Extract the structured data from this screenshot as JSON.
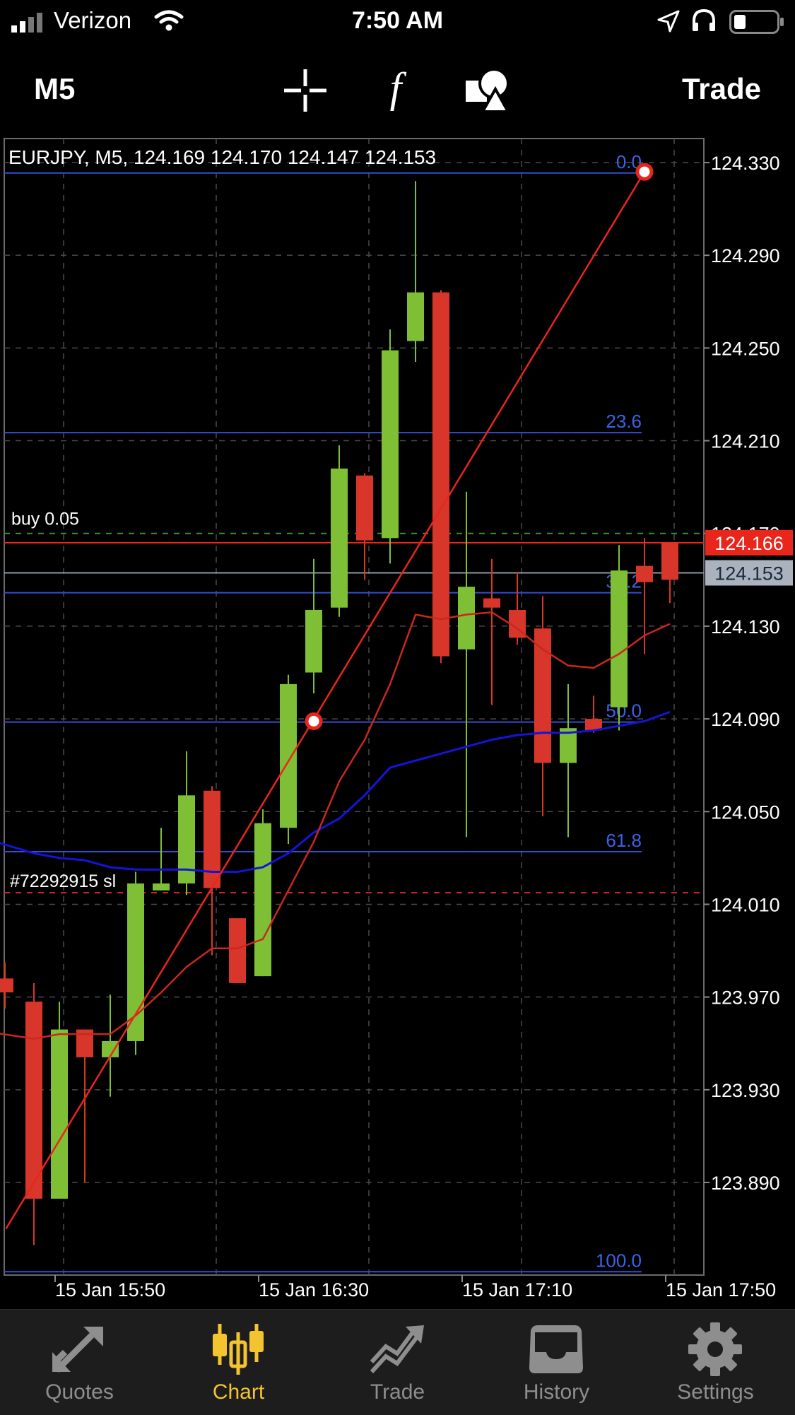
{
  "status_bar": {
    "carrier": "Verizon",
    "time": "7:50 AM"
  },
  "toolbar": {
    "period": "M5",
    "crosshair_icon": "crosshair-icon",
    "indicators_icon": "function-icon",
    "objects_icon": "shapes-icon",
    "trade_label": "Trade"
  },
  "chart": {
    "info": "EURJPY, M5, 124.169 124.170 124.147 124.153",
    "buy_label": "buy 0.05",
    "sl_label": "#72292915 sl",
    "bid_price": "124.166",
    "last_price": "124.153",
    "fib_levels": [
      {
        "label": "0.0",
        "price": 124.3255
      },
      {
        "label": "23.6",
        "price": 124.2135
      },
      {
        "label": "38.2",
        "price": 124.1444
      },
      {
        "label": "50.0",
        "price": 124.0886
      },
      {
        "label": "61.8",
        "price": 124.0327
      },
      {
        "label": "100.0",
        "price": 123.8515
      }
    ],
    "price_labels": [
      "124.330",
      "124.290",
      "124.250",
      "124.210",
      "124.170",
      "124.130",
      "124.090",
      "124.050",
      "124.010",
      "123.970",
      "123.930",
      "123.890"
    ],
    "price_values": [
      124.33,
      124.29,
      124.25,
      124.21,
      124.17,
      124.13,
      124.09,
      124.05,
      124.01,
      123.97,
      123.93,
      123.89
    ],
    "time_labels": [
      "15 Jan 15:50",
      "15 Jan 16:30",
      "15 Jan 17:10",
      "15 Jan 17:50"
    ],
    "colors": {
      "bull": "#7fbf36",
      "bear": "#d8362a",
      "fib": "#2f4fd6",
      "ma_fast": "#c8281e",
      "ma_slow": "#1414d8",
      "bid": "#e8261c",
      "last": "#8e97a6"
    }
  },
  "chart_data": {
    "type": "candlestick",
    "symbol": "EURJPY",
    "timeframe": "M5",
    "ylim": [
      123.851,
      124.345
    ],
    "candles": [
      {
        "o": 123.978,
        "h": 123.985,
        "c": 123.972,
        "l": 123.965
      },
      {
        "o": 123.968,
        "h": 123.976,
        "c": 123.883,
        "l": 123.863
      },
      {
        "o": 123.883,
        "h": 123.968,
        "c": 123.956,
        "l": 123.883
      },
      {
        "o": 123.956,
        "h": 123.956,
        "c": 123.944,
        "l": 123.89
      },
      {
        "o": 123.944,
        "h": 123.971,
        "c": 123.951,
        "l": 123.927
      },
      {
        "o": 123.951,
        "h": 124.024,
        "c": 124.019,
        "l": 123.945
      },
      {
        "o": 124.016,
        "h": 124.043,
        "c": 124.019,
        "l": 124.016
      },
      {
        "o": 124.019,
        "h": 124.076,
        "c": 124.057,
        "l": 124.014
      },
      {
        "o": 124.059,
        "h": 124.061,
        "c": 124.017,
        "l": 123.988
      },
      {
        "o": 124.004,
        "h": 124.004,
        "c": 123.976,
        "l": 123.976
      },
      {
        "o": 123.979,
        "h": 124.051,
        "c": 124.045,
        "l": 123.979
      },
      {
        "o": 124.043,
        "h": 124.109,
        "c": 124.105,
        "l": 124.036
      },
      {
        "o": 124.11,
        "h": 124.159,
        "c": 124.137,
        "l": 124.101
      },
      {
        "o": 124.138,
        "h": 124.208,
        "c": 124.198,
        "l": 124.134
      },
      {
        "o": 124.195,
        "h": 124.196,
        "c": 124.167,
        "l": 124.15
      },
      {
        "o": 124.168,
        "h": 124.258,
        "c": 124.249,
        "l": 124.157
      },
      {
        "o": 124.253,
        "h": 124.322,
        "c": 124.274,
        "l": 124.244
      },
      {
        "o": 124.274,
        "h": 124.275,
        "c": 124.117,
        "l": 124.114
      },
      {
        "o": 124.12,
        "h": 124.188,
        "c": 124.147,
        "l": 124.039
      },
      {
        "o": 124.142,
        "h": 124.159,
        "c": 124.138,
        "l": 124.096
      },
      {
        "o": 124.137,
        "h": 124.153,
        "c": 124.125,
        "l": 124.122
      },
      {
        "o": 124.129,
        "h": 124.143,
        "c": 124.071,
        "l": 124.048
      },
      {
        "o": 124.071,
        "h": 124.105,
        "c": 124.086,
        "l": 124.039
      },
      {
        "o": 124.09,
        "h": 124.1,
        "c": 124.085,
        "l": 124.084
      },
      {
        "o": 124.095,
        "h": 124.165,
        "c": 124.154,
        "l": 124.085
      },
      {
        "o": 124.156,
        "h": 124.168,
        "c": 124.149,
        "l": 124.118
      },
      {
        "o": 124.166,
        "h": 124.166,
        "c": 124.15,
        "l": 124.14
      }
    ],
    "ma_fast": [
      123.955,
      123.952,
      123.954,
      123.954,
      123.954,
      123.962,
      123.972,
      123.983,
      123.991,
      123.991,
      123.995,
      124.016,
      124.037,
      124.063,
      124.081,
      124.105,
      124.135,
      124.133,
      124.135,
      124.136,
      124.129,
      124.12,
      124.113,
      124.112,
      124.118,
      124.126,
      124.131
    ],
    "ma_slow": [
      124.038,
      124.032,
      124.03,
      124.029,
      124.026,
      124.025,
      124.025,
      124.025,
      124.024,
      124.024,
      124.026,
      124.032,
      124.041,
      124.047,
      124.057,
      124.069,
      124.072,
      124.075,
      124.078,
      124.081,
      124.083,
      124.084,
      124.084,
      124.085,
      124.087,
      124.089,
      124.093
    ],
    "trend_line": {
      "x1": -0.1,
      "y1": 123.87,
      "x2": 25.0,
      "y2": 124.326
    },
    "trend_points": [
      {
        "x": 12.0,
        "y": 124.089
      },
      {
        "x": 25.0,
        "y": 124.326
      }
    ],
    "bid": 124.166,
    "last": 124.153,
    "sl": 124.015
  },
  "tabs": [
    {
      "label": "Quotes",
      "icon": "quotes-icon",
      "active": false
    },
    {
      "label": "Chart",
      "icon": "chart-icon",
      "active": true
    },
    {
      "label": "Trade",
      "icon": "trade-icon",
      "active": false
    },
    {
      "label": "History",
      "icon": "history-icon",
      "active": false
    },
    {
      "label": "Settings",
      "icon": "settings-icon",
      "active": false
    }
  ]
}
